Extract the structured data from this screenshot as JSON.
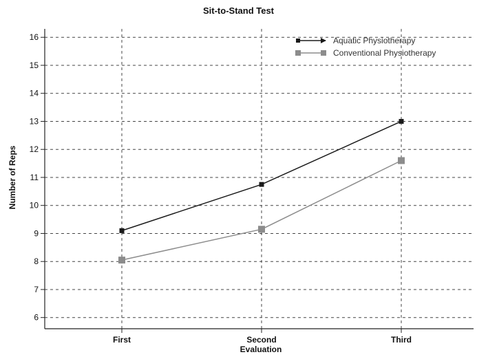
{
  "chart_data": {
    "type": "line",
    "title": "Sit-to-Stand Test",
    "xlabel": "Evaluation",
    "ylabel": "Number of Reps",
    "categories": [
      "First",
      "Second",
      "Third"
    ],
    "ylim": [
      5.6,
      16.3
    ],
    "yticks": [
      "6",
      "7",
      "8",
      "9",
      "10",
      "11",
      "12",
      "13",
      "14",
      "15",
      "16"
    ],
    "grid": true,
    "legend_position": "top-right",
    "series": [
      {
        "name": "Aquatic Physiotherapy",
        "values": [
          9.1,
          10.75,
          13.0
        ],
        "color": "#1a1a1a",
        "marker": "square-small"
      },
      {
        "name": "Conventional Physiotherapy",
        "values": [
          8.05,
          9.15,
          11.6
        ],
        "color": "#8c8c8c",
        "marker": "square"
      }
    ]
  }
}
